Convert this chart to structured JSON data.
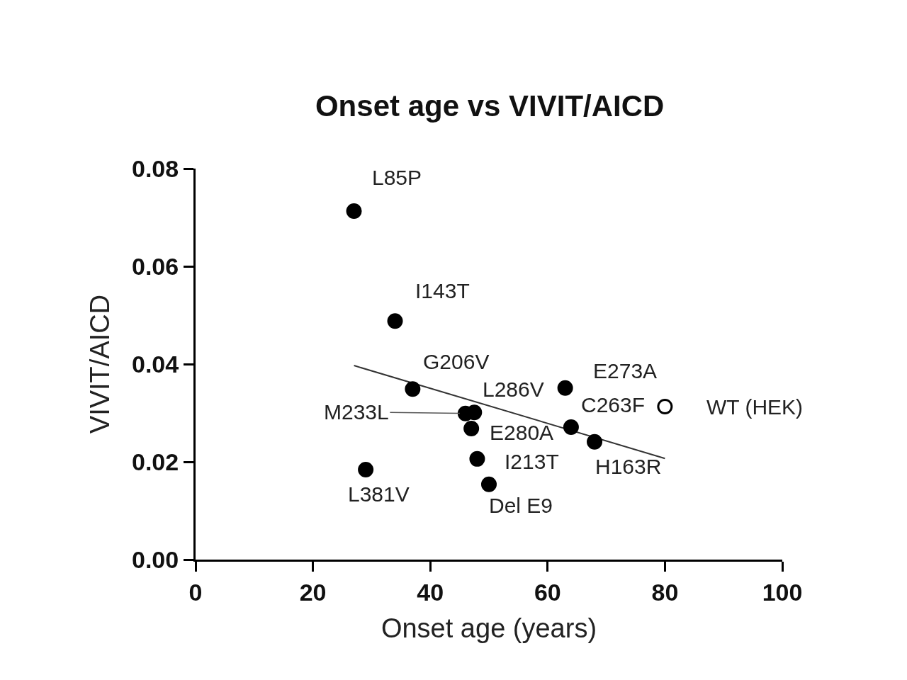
{
  "chart_data": {
    "type": "scatter",
    "title": "Onset age vs VIVIT/AICD",
    "xlabel": "Onset age (years)",
    "ylabel": "VIVIT/AICD",
    "xlim": [
      0,
      100
    ],
    "xticks": [
      0,
      20,
      40,
      60,
      80,
      100
    ],
    "ylim": [
      0,
      0.08
    ],
    "yticks": [
      {
        "value": 0,
        "label": "0.00"
      },
      {
        "value": 0.02,
        "label": "0.02"
      },
      {
        "value": 0.04,
        "label": "0.04"
      },
      {
        "value": 0.06,
        "label": "0.06"
      },
      {
        "value": 0.08,
        "label": "0.08"
      }
    ],
    "grid": false,
    "marker": "circle",
    "series": [
      {
        "color": "#000000",
        "x": [
          27,
          34,
          37,
          46,
          47.5,
          47,
          48,
          50,
          29,
          63,
          64,
          68
        ],
        "values": [
          0.0713,
          0.0488,
          0.0349,
          0.0299,
          0.0301,
          0.0268,
          0.0206,
          0.0154,
          0.0184,
          0.0351,
          0.0271,
          0.0241
        ]
      },
      {
        "color": "#ffffff",
        "x": [
          80
        ],
        "values": [
          0.0313
        ]
      },
      {
        "type": "line",
        "marker": "none",
        "color": "#333333",
        "x": [
          27,
          80
        ],
        "values": [
          0.0397,
          0.0207
        ]
      }
    ],
    "annotations": [
      {
        "text": "L85P",
        "x": 27,
        "y": 0.0713
      },
      {
        "text": "I143T",
        "x": 34,
        "y": 0.0488
      },
      {
        "text": "G206V",
        "x": 37,
        "y": 0.0349
      },
      {
        "text": "M233L",
        "x": 46,
        "y": 0.0299
      },
      {
        "text": "L286V",
        "x": 47.5,
        "y": 0.0301
      },
      {
        "text": "E280A",
        "x": 47,
        "y": 0.0268
      },
      {
        "text": "I213T",
        "x": 48,
        "y": 0.0206
      },
      {
        "text": "Del E9",
        "x": 50,
        "y": 0.0154
      },
      {
        "text": "L381V",
        "x": 29,
        "y": 0.0184
      },
      {
        "text": "E273A",
        "x": 63,
        "y": 0.0351
      },
      {
        "text": "C263F",
        "x": 64,
        "y": 0.0271
      },
      {
        "text": "H163R",
        "x": 68,
        "y": 0.0241
      },
      {
        "text": "WT (HEK)",
        "x": 80,
        "y": 0.0313
      }
    ]
  }
}
